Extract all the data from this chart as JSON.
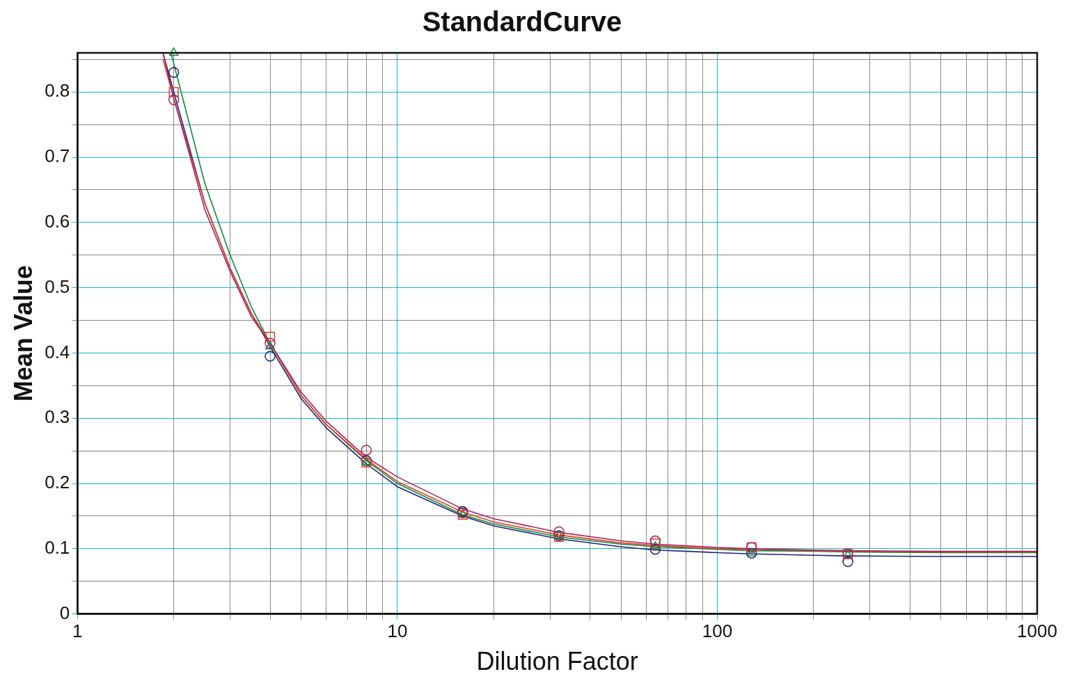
{
  "chart_data": {
    "type": "scatter",
    "title": "StandardCurve",
    "xlabel": "Dilution Factor",
    "ylabel": "Mean Value",
    "log": "x",
    "grid": true,
    "legend": false,
    "xlim": [
      1,
      1000
    ],
    "xticks": [
      1,
      {
        "value": 2,
        "label": null
      },
      {
        "value": 3,
        "label": null
      },
      {
        "value": 4,
        "label": null
      },
      {
        "value": 5,
        "label": null
      },
      {
        "value": 6,
        "label": null
      },
      {
        "value": 7,
        "label": null
      },
      {
        "value": 8,
        "label": null
      },
      {
        "value": 9,
        "label": null
      },
      10,
      {
        "value": 20,
        "label": null
      },
      {
        "value": 30,
        "label": null
      },
      {
        "value": 40,
        "label": null
      },
      {
        "value": 50,
        "label": null
      },
      {
        "value": 60,
        "label": null
      },
      {
        "value": 70,
        "label": null
      },
      {
        "value": 80,
        "label": null
      },
      {
        "value": 90,
        "label": null
      },
      100,
      {
        "value": 200,
        "label": null
      },
      {
        "value": 300,
        "label": null
      },
      {
        "value": 400,
        "label": null
      },
      {
        "value": 500,
        "label": null
      },
      {
        "value": 600,
        "label": null
      },
      {
        "value": 700,
        "label": null
      },
      {
        "value": 800,
        "label": null
      },
      {
        "value": 900,
        "label": null
      },
      1000
    ],
    "ylim": [
      0,
      0.86
    ],
    "yticks": [
      0,
      {
        "value": 0.05,
        "label": null
      },
      0.1,
      {
        "value": 0.15,
        "label": null
      },
      0.2,
      {
        "value": 0.25,
        "label": null
      },
      0.3,
      {
        "value": 0.35,
        "label": null
      },
      0.4,
      {
        "value": 0.45,
        "label": null
      },
      0.5,
      {
        "value": 0.55,
        "label": null
      },
      0.6,
      {
        "value": 0.65,
        "label": null
      },
      0.7,
      {
        "value": 0.75,
        "label": null
      },
      0.8,
      {
        "value": 0.85,
        "label": null
      }
    ],
    "series": [
      {
        "type": "line",
        "marker": "none",
        "color": "#1f1f7a",
        "x": [
          1.85,
          2,
          2.5,
          3,
          3.5,
          4,
          5,
          6,
          8,
          10,
          16,
          20,
          32,
          50,
          64,
          100,
          128,
          200,
          256,
          500,
          1000
        ],
        "values": [
          0.86,
          0.8,
          0.63,
          0.53,
          0.46,
          0.41,
          0.33,
          0.285,
          0.23,
          0.195,
          0.15,
          0.135,
          0.115,
          0.103,
          0.098,
          0.094,
          0.092,
          0.09,
          0.089,
          0.088,
          0.088
        ]
      },
      {
        "type": "line",
        "marker": "none",
        "color": "#0a8a3a",
        "x": [
          1.96,
          2.5,
          3,
          3.5,
          4,
          5,
          6,
          8,
          10,
          16,
          20,
          32,
          50,
          64,
          100,
          128,
          200,
          256,
          500,
          1000
        ],
        "values": [
          0.86,
          0.66,
          0.55,
          0.47,
          0.415,
          0.335,
          0.29,
          0.235,
          0.2,
          0.152,
          0.138,
          0.118,
          0.107,
          0.103,
          0.099,
          0.097,
          0.096,
          0.095,
          0.094,
          0.094
        ]
      },
      {
        "type": "line",
        "marker": "none",
        "color": "#e0402a",
        "x": [
          1.85,
          2,
          2.5,
          3,
          3.5,
          4,
          5,
          6,
          8,
          10,
          16,
          20,
          32,
          50,
          64,
          100,
          128,
          200,
          256,
          500,
          1000
        ],
        "values": [
          0.85,
          0.79,
          0.63,
          0.53,
          0.46,
          0.415,
          0.335,
          0.29,
          0.237,
          0.203,
          0.156,
          0.141,
          0.121,
          0.109,
          0.105,
          0.1,
          0.099,
          0.097,
          0.096,
          0.095,
          0.095
        ]
      },
      {
        "type": "line",
        "marker": "none",
        "color": "#a8245a",
        "x": [
          1.85,
          2,
          2.5,
          3,
          3.5,
          4,
          5,
          6,
          8,
          10,
          16,
          20,
          32,
          50,
          64,
          100,
          128,
          200,
          256,
          500,
          1000
        ],
        "values": [
          0.86,
          0.79,
          0.62,
          0.525,
          0.455,
          0.415,
          0.34,
          0.295,
          0.24,
          0.21,
          0.161,
          0.146,
          0.125,
          0.112,
          0.107,
          0.102,
          0.1,
          0.098,
          0.097,
          0.096,
          0.096
        ]
      },
      {
        "type": "scatter",
        "marker": "circle",
        "color": "#1f1f7a",
        "x": [
          2,
          4,
          8,
          16,
          32,
          64,
          128,
          256
        ],
        "values": [
          0.83,
          0.395,
          0.235,
          0.157,
          0.12,
          0.099,
          0.093,
          0.08
        ]
      },
      {
        "type": "scatter",
        "marker": "triangle",
        "color": "#0a8a3a",
        "x": [
          2,
          4,
          8,
          16,
          32,
          64,
          128,
          256
        ],
        "values": [
          0.86,
          0.41,
          0.232,
          0.152,
          0.12,
          0.103,
          0.093,
          0.09
        ]
      },
      {
        "type": "scatter",
        "marker": "square",
        "color": "#e0402a",
        "x": [
          2,
          4,
          8,
          16,
          32,
          64,
          128,
          256
        ],
        "values": [
          0.8,
          0.425,
          0.232,
          0.152,
          0.118,
          0.108,
          0.102,
          0.092
        ]
      },
      {
        "type": "scatter",
        "marker": "circle",
        "color": "#a8245a",
        "x": [
          2,
          4,
          8,
          16,
          32,
          64,
          128,
          256
        ],
        "values": [
          0.788,
          0.415,
          0.251,
          0.155,
          0.126,
          0.112,
          0.102,
          0.092
        ]
      }
    ]
  }
}
